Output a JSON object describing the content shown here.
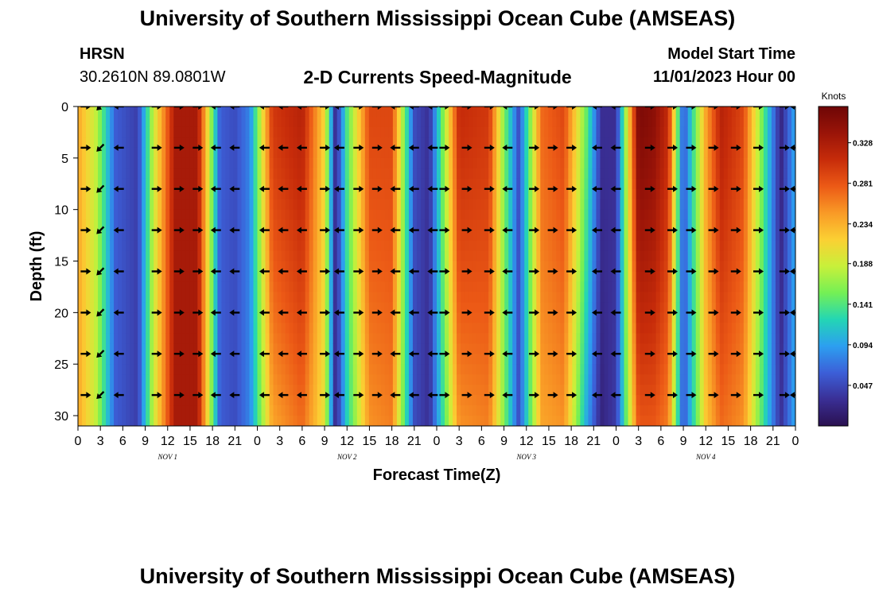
{
  "header": {
    "title": "University of Southern Mississippi Ocean Cube (AMSEAS)",
    "station_name": "HRSN",
    "station_coords": "30.2610N  89.0801W",
    "plot_title": "2-D Currents Speed-Magnitude",
    "model_start_label": "Model Start Time",
    "model_start_value": "11/01/2023 Hour 00"
  },
  "footer": {
    "title": "University of Southern Mississippi Ocean Cube (AMSEAS)"
  },
  "chart_data": {
    "type": "heatmap",
    "title": "2-D Currents Speed-Magnitude",
    "xlabel": "Forecast Time(Z)",
    "ylabel": "Depth (ft)",
    "x_tick_labels": [
      "0",
      "3",
      "6",
      "9",
      "12",
      "15",
      "18",
      "21",
      "0",
      "3",
      "6",
      "9",
      "12",
      "15",
      "18",
      "21",
      "0",
      "3",
      "6",
      "9",
      "12",
      "15",
      "18",
      "21",
      "0",
      "3",
      "6",
      "9",
      "12",
      "15",
      "18",
      "21",
      "0"
    ],
    "x_range_hours": [
      0,
      96
    ],
    "day_labels": [
      {
        "label": "NOV 1",
        "hour": 12
      },
      {
        "label": "NOV 2",
        "hour": 36
      },
      {
        "label": "NOV 3",
        "hour": 60
      },
      {
        "label": "NOV 4",
        "hour": 84
      }
    ],
    "y_ticks": [
      0,
      5,
      10,
      15,
      20,
      25,
      30
    ],
    "y_range_ft": [
      0,
      31
    ],
    "y_inverted": true,
    "colorbar": {
      "units": "Knots",
      "ticks": [
        0.328,
        0.281,
        0.234,
        0.188,
        0.141,
        0.094,
        0.047
      ],
      "range": [
        0.0,
        0.37
      ],
      "colors": [
        "#2a1050",
        "#3a2f95",
        "#3c5fd8",
        "#2c9ff0",
        "#23d6b4",
        "#74f055",
        "#c8f03a",
        "#fbd033",
        "#f99a26",
        "#ec5a16",
        "#c72c0a",
        "#9a1408",
        "#6e0606"
      ]
    },
    "speed_keyframes_hours": [
      0,
      2.5,
      5,
      8,
      10,
      13,
      16,
      19,
      21,
      23,
      26,
      30,
      33,
      34.5,
      36,
      39,
      42,
      45,
      47,
      51,
      55,
      57,
      59,
      62,
      65,
      68,
      70,
      72,
      75,
      77,
      79,
      81,
      84,
      86,
      89,
      92,
      94,
      96
    ],
    "speed_surface_knots": [
      0.24,
      0.18,
      0.06,
      0.04,
      0.18,
      0.33,
      0.33,
      0.06,
      0.05,
      0.08,
      0.3,
      0.32,
      0.21,
      0.02,
      0.14,
      0.29,
      0.29,
      0.05,
      0.03,
      0.31,
      0.3,
      0.16,
      0.05,
      0.27,
      0.29,
      0.15,
      0.03,
      0.03,
      0.36,
      0.35,
      0.31,
      0.05,
      0.24,
      0.32,
      0.29,
      0.13,
      0.02,
      0.1
    ],
    "speed_bottom_knots": [
      0.24,
      0.18,
      0.06,
      0.04,
      0.18,
      0.33,
      0.33,
      0.06,
      0.05,
      0.08,
      0.24,
      0.27,
      0.2,
      0.02,
      0.12,
      0.25,
      0.26,
      0.05,
      0.03,
      0.25,
      0.26,
      0.16,
      0.05,
      0.24,
      0.25,
      0.1,
      0.02,
      0.04,
      0.28,
      0.28,
      0.26,
      0.05,
      0.22,
      0.27,
      0.25,
      0.12,
      0.03,
      0.1
    ],
    "arrow_depths_ft": [
      0,
      4,
      8,
      12,
      16,
      20,
      24,
      28
    ],
    "arrow_hours": [
      1,
      3,
      5.5,
      10.5,
      13.5,
      16,
      18.5,
      21,
      25,
      27.5,
      30,
      33,
      35,
      37.5,
      40,
      42.5,
      45,
      47.5,
      49,
      52,
      55,
      57.5,
      61,
      63.5,
      66,
      69.5,
      72,
      76.5,
      79.5,
      82,
      85,
      88,
      91,
      94.5,
      96
    ],
    "arrow_directions": [
      "E",
      "SW",
      "W",
      "E",
      "E",
      "E",
      "W",
      "W",
      "W",
      "W",
      "W",
      "E",
      "W",
      "E",
      "E",
      "W",
      "W",
      "W",
      "E",
      "E",
      "E",
      "W",
      "E",
      "E",
      "E",
      "W",
      "W",
      "E",
      "E",
      "E",
      "E",
      "E",
      "E",
      "E",
      "W"
    ]
  }
}
